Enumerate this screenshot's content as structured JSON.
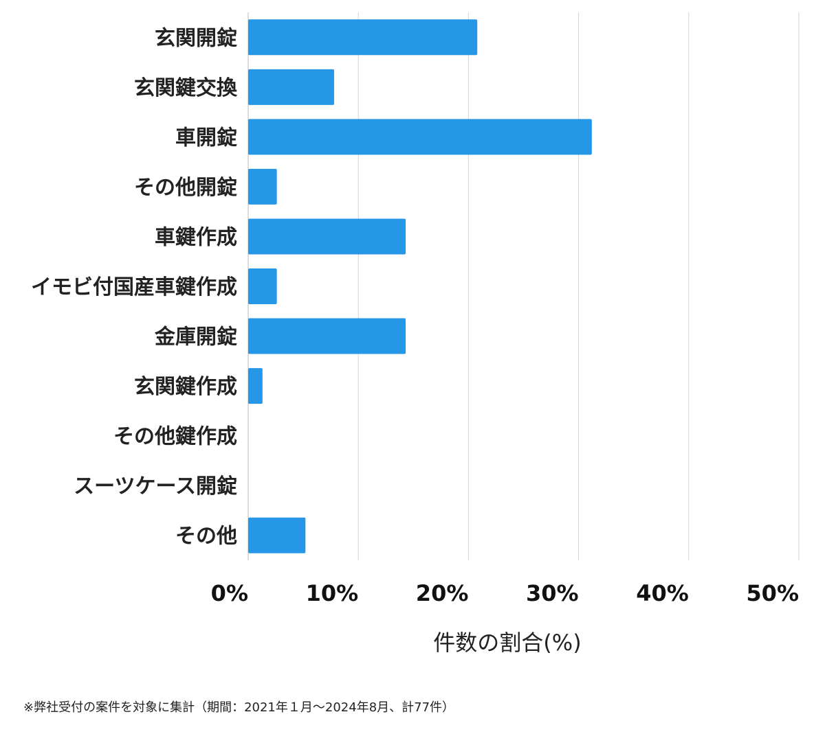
{
  "chart_data": {
    "type": "bar",
    "orientation": "horizontal",
    "categories": [
      "玄関開錠",
      "玄関鍵交換",
      "車開錠",
      "その他開錠",
      "車鍵作成",
      "イモビ付国産車鍵作成",
      "金庫開錠",
      "玄関鍵作成",
      "その他鍵作成",
      "スーツケース開錠",
      "その他"
    ],
    "values": [
      20.8,
      7.8,
      31.2,
      2.6,
      14.3,
      2.6,
      14.3,
      1.3,
      0,
      0,
      5.2
    ],
    "xlabel": "件数の割合(%)",
    "ylabel": "",
    "xlim": [
      0,
      50
    ],
    "xticks": [
      "0%",
      "10%",
      "20%",
      "30%",
      "40%",
      "50%"
    ],
    "grid": "vertical",
    "bar_color": "#2696e6",
    "grid_color": "#d4d4d4"
  },
  "footnote": "※弊社受付の案件を対象に集計（期間：2021年１月〜2024年8月、計77件）"
}
